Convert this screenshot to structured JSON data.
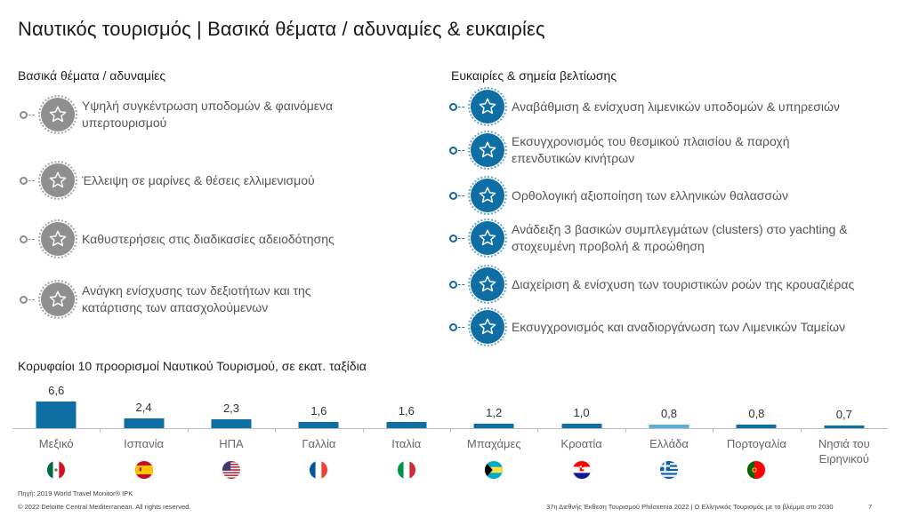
{
  "title": "Ναυτικός τουρισμός | Βασικά θέματα / αδυναμίες & ευκαιρίες",
  "left_section": {
    "heading": "Βασικά θέματα / αδυναμίες",
    "icon": "star-icon",
    "color": "#8f8f8f",
    "items": [
      {
        "line1": "Υψηλή συγκέντρωση υποδομών & φαινόμενα",
        "line2": "υπερτουρισμού"
      },
      {
        "line1": "Έλλειψη σε μαρίνες & θέσεις ελλιμενισμού",
        "line2": ""
      },
      {
        "line1": "Καθυστερήσεις στις διαδικασίες αδειοδότησης",
        "line2": ""
      },
      {
        "line1": "Ανάγκη ενίσχυσης των δεξιοτήτων και της",
        "line2": "κατάρτισης των απασχολούμενων"
      }
    ]
  },
  "right_section": {
    "heading": "Ευκαιρίες & σημεία βελτίωσης",
    "icon": "star-icon",
    "color": "#0f6fa5",
    "items": [
      {
        "line1": "Αναβάθμιση & ενίσχυση λιμενικών υποδομών & υπηρεσιών",
        "line2": ""
      },
      {
        "line1": "Εκσυγχρονισμός του θεσμικού πλαισίου & παροχή",
        "line2": "επενδυτικών κινήτρων"
      },
      {
        "line1": "Ορθολογική αξιοποίηση των ελληνικών θαλασσών",
        "line2": ""
      },
      {
        "line1": "Ανάδειξη 3 βασικών συμπλεγμάτων (clusters) στο yachting &",
        "line2": "στοχευμένη προβολή & προώθηση"
      },
      {
        "line1": "Διαχείριση & ενίσχυση των τουριστικών ροών της κρουαζιέρας",
        "line2": ""
      },
      {
        "line1": "Εκσυγχρονισμός και αναδιοργάνωση των Λιμενικών Ταμείων",
        "line2": ""
      }
    ]
  },
  "chart_data": {
    "type": "bar",
    "title": "Κορυφαίοι 10 προορισμοί Ναυτικού Τουρισμού, σε εκατ. ταξίδια",
    "xlabel": "",
    "ylabel": "εκατ. ταξίδια",
    "ylim": [
      0,
      6.6
    ],
    "grid": false,
    "legend": "none",
    "categories": [
      "Μεξικό",
      "Ισπανία",
      "ΗΠΑ",
      "Γαλλία",
      "Ιταλία",
      "Μπαχάμες",
      "Κροατία",
      "Ελλάδα",
      "Πορτογαλία",
      "Νησιά του Ειρηνικού"
    ],
    "values": [
      6.6,
      2.4,
      2.3,
      1.6,
      1.6,
      1.2,
      1.0,
      0.8,
      0.8,
      0.7
    ],
    "value_labels": [
      "6,6",
      "2,4",
      "2,3",
      "1,6",
      "1,6",
      "1,2",
      "1,0",
      "0,8",
      "0,8",
      "0,7"
    ],
    "flags": [
      "mexico-flag-icon",
      "spain-flag-icon",
      "usa-flag-icon",
      "france-flag-icon",
      "italy-flag-icon",
      "bahamas-flag-icon",
      "croatia-flag-icon",
      "greece-flag-icon",
      "portugal-flag-icon",
      ""
    ],
    "bar_color": "#0f6fa5",
    "highlight_color": "#5aaed8",
    "highlight_category": "Ελλάδα"
  },
  "footer": {
    "source": "Πηγή: 2019 World Travel Monitor® IPK",
    "copyright": "© 2022 Deloitte Central Mediterranean. All rights reserved.",
    "event": "37η Διεθνής Έκθεση Τουρισμού Philoxenia 2022 | Ο Ελληνικός Τουρισμός με το βλέμμα στο 2030",
    "page": "7"
  }
}
